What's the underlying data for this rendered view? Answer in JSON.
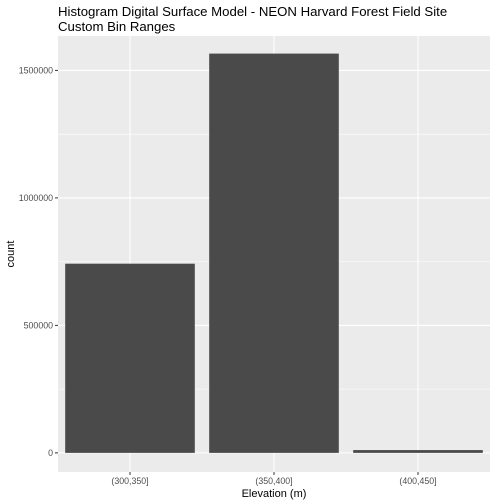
{
  "chart_data": {
    "type": "bar",
    "title": "Histogram Digital Surface Model - NEON Harvard Forest Field Site",
    "subtitle": "Custom Bin Ranges",
    "xlabel": "Elevation (m)",
    "ylabel": "count",
    "categories": [
      "(300,350]",
      "(350,400]",
      "(400,450]"
    ],
    "values": [
      742000,
      1566000,
      11000
    ],
    "ylim": [
      -75000,
      1635000
    ],
    "yticks": [
      0,
      500000,
      1000000,
      1500000
    ],
    "ytick_labels": [
      "0",
      "500000",
      "1000000",
      "1500000"
    ],
    "grid": true,
    "colors": {
      "panel_background": "#ebebeb",
      "grid_major": "#ffffff",
      "bar_fill": "#4a4a4a",
      "tick_text": "#4d4d4d"
    }
  }
}
